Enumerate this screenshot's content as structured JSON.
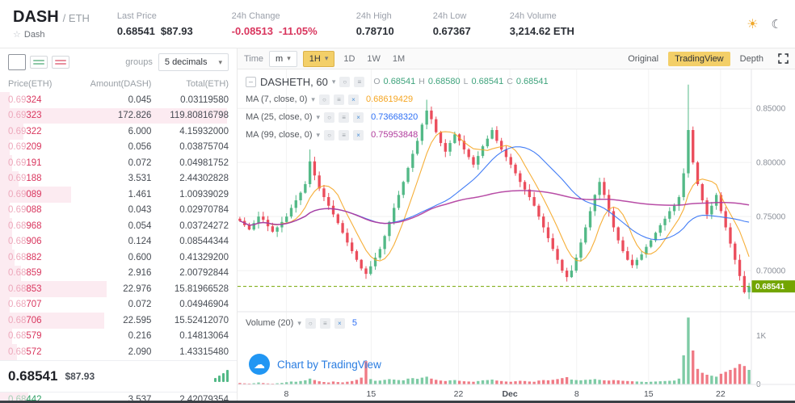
{
  "colors": {
    "accent_yellow": "#f3cf68",
    "sell_red": "#d9365e",
    "sell_red_light": "#eda8bb",
    "depth_pink": "#fcebf1",
    "buy_green": "#2f9e64",
    "buy_green_light": "#a5cfb6",
    "candle_up": "#53b987",
    "candle_down": "#eb4d5c",
    "badge_green": "#73a500",
    "ohlc_green": "#3fa37c",
    "link_blue": "#2a7de1"
  },
  "icons": {
    "sun": "☀",
    "moon": "☾",
    "star": "☆",
    "caret": "▾",
    "minus": "–",
    "eye": "○",
    "settings": "≡",
    "close": "×",
    "cloud": "☁"
  },
  "header": {
    "pair_base": "DASH",
    "pair_quote": "/ ETH",
    "pair_name": "Dash",
    "stats": [
      {
        "label": "Last Price",
        "value": "0.68541",
        "sub": "$87.93"
      },
      {
        "label": "24h Change",
        "value": "-0.08513",
        "sub": "-11.05%"
      },
      {
        "label": "24h High",
        "value": "0.78710",
        "sub": ""
      },
      {
        "label": "24h Low",
        "value": "0.67367",
        "sub": ""
      },
      {
        "label": "24h Volume",
        "value": "3,214.62 ETH",
        "sub": ""
      }
    ]
  },
  "orderbook": {
    "groups_label": "groups",
    "decimals_value": "5 decimals",
    "columns": [
      "Price(ETH)",
      "Amount(DASH)",
      "Total(ETH)"
    ],
    "asks": [
      {
        "p1": "0.69",
        "p2": "324",
        "amount": "0.045",
        "total": "0.03119580",
        "depth": 0.04
      },
      {
        "p1": "0.69",
        "p2": "323",
        "amount": "172.826",
        "total": "119.80816798",
        "depth": 0.96
      },
      {
        "p1": "0.69",
        "p2": "322",
        "amount": "6.000",
        "total": "4.15932000",
        "depth": 0.1
      },
      {
        "p1": "0.69",
        "p2": "209",
        "amount": "0.056",
        "total": "0.03875704",
        "depth": 0.04
      },
      {
        "p1": "0.69",
        "p2": "191",
        "amount": "0.072",
        "total": "0.04981752",
        "depth": 0.05
      },
      {
        "p1": "0.69",
        "p2": "188",
        "amount": "3.531",
        "total": "2.44302828",
        "depth": 0.08
      },
      {
        "p1": "0.69",
        "p2": "089",
        "amount": "1.461",
        "total": "1.00939029",
        "depth": 0.3
      },
      {
        "p1": "0.69",
        "p2": "088",
        "amount": "0.043",
        "total": "0.02970784",
        "depth": 0.04
      },
      {
        "p1": "0.68",
        "p2": "968",
        "amount": "0.054",
        "total": "0.03724272",
        "depth": 0.05
      },
      {
        "p1": "0.68",
        "p2": "906",
        "amount": "0.124",
        "total": "0.08544344",
        "depth": 0.05
      },
      {
        "p1": "0.68",
        "p2": "882",
        "amount": "0.600",
        "total": "0.41329200",
        "depth": 0.06
      },
      {
        "p1": "0.68",
        "p2": "859",
        "amount": "2.916",
        "total": "2.00792844",
        "depth": 0.09
      },
      {
        "p1": "0.68",
        "p2": "853",
        "amount": "22.976",
        "total": "15.81966528",
        "depth": 0.45
      },
      {
        "p1": "0.68",
        "p2": "707",
        "amount": "0.072",
        "total": "0.04946904",
        "depth": 0.04
      },
      {
        "p1": "0.68",
        "p2": "706",
        "amount": "22.595",
        "total": "15.52412070",
        "depth": 0.44
      },
      {
        "p1": "0.68",
        "p2": "579",
        "amount": "0.216",
        "total": "0.14813064",
        "depth": 0.05
      },
      {
        "p1": "0.68",
        "p2": "572",
        "amount": "2.090",
        "total": "1.43315480",
        "depth": 0.07
      }
    ],
    "last": {
      "price": "0.68541",
      "usd": "$87.93"
    },
    "bids": [
      {
        "p1": "0.68",
        "p2": "442",
        "amount": "3.537",
        "total": "2.42079354",
        "depth": 0.12
      }
    ]
  },
  "chart": {
    "toolbar": {
      "time_label": "Time",
      "minute_value": "m",
      "hour_value": "1H",
      "intervals": [
        "1D",
        "1W",
        "1M"
      ],
      "view_buttons": [
        "Original",
        "TradingView",
        "Depth"
      ]
    },
    "legend": {
      "symbol": "DASHETH, 60",
      "o_label": "O",
      "o_value": "0.68541",
      "h_label": "H",
      "h_value": "0.68580",
      "l_label": "L",
      "l_value": "0.68541",
      "c_label": "C",
      "c_value": "0.68541"
    },
    "mas": [
      {
        "label": "MA (7, close, 0)",
        "value": "0.68619429",
        "color": "#f5a623"
      },
      {
        "label": "MA (25, close, 0)",
        "value": "0.73668320",
        "color": "#2d6ff5"
      },
      {
        "label": "MA (99, close, 0)",
        "value": "0.75953848",
        "color": "#b03a9c"
      }
    ],
    "volume": {
      "label": "Volume (20)",
      "value": "5",
      "color": "#2d6ff5"
    },
    "watermark": "Chart by TradingView"
  },
  "chart_data": {
    "type": "candlestick",
    "title": "DASHETH, 60",
    "ylim": [
      0.662,
      0.886
    ],
    "yticks": [
      {
        "value": 0.85,
        "label": "0.85000"
      },
      {
        "value": 0.8,
        "label": "0.80000"
      },
      {
        "value": 0.75,
        "label": "0.75000"
      },
      {
        "value": 0.7,
        "label": "0.70000"
      }
    ],
    "last_price": 0.68541,
    "last_price_label": "0.68541",
    "x_ticks": [
      {
        "pos": 0.095,
        "label": "8",
        "bold": false
      },
      {
        "pos": 0.26,
        "label": "15",
        "bold": false
      },
      {
        "pos": 0.43,
        "label": "22",
        "bold": false
      },
      {
        "pos": 0.53,
        "label": "Dec",
        "bold": true
      },
      {
        "pos": 0.66,
        "label": "8",
        "bold": false
      },
      {
        "pos": 0.8,
        "label": "15",
        "bold": false
      },
      {
        "pos": 0.94,
        "label": "22",
        "bold": false
      }
    ],
    "closes": [
      0.746,
      0.742,
      0.738,
      0.744,
      0.75,
      0.747,
      0.741,
      0.736,
      0.74,
      0.745,
      0.75,
      0.758,
      0.765,
      0.772,
      0.78,
      0.801,
      0.788,
      0.776,
      0.768,
      0.76,
      0.752,
      0.744,
      0.735,
      0.726,
      0.718,
      0.71,
      0.702,
      0.697,
      0.704,
      0.712,
      0.72,
      0.732,
      0.745,
      0.758,
      0.77,
      0.782,
      0.795,
      0.808,
      0.82,
      0.835,
      0.848,
      0.84,
      0.828,
      0.818,
      0.81,
      0.818,
      0.826,
      0.82,
      0.812,
      0.805,
      0.798,
      0.806,
      0.815,
      0.822,
      0.83,
      0.82,
      0.812,
      0.805,
      0.798,
      0.79,
      0.782,
      0.775,
      0.768,
      0.76,
      0.75,
      0.74,
      0.73,
      0.72,
      0.71,
      0.7,
      0.694,
      0.7,
      0.712,
      0.726,
      0.74,
      0.755,
      0.77,
      0.782,
      0.77,
      0.755,
      0.74,
      0.728,
      0.718,
      0.71,
      0.705,
      0.71,
      0.715,
      0.722,
      0.728,
      0.735,
      0.742,
      0.748,
      0.755,
      0.76,
      0.768,
      0.79,
      0.83,
      0.8,
      0.78,
      0.765,
      0.752,
      0.76,
      0.77,
      0.755,
      0.74,
      0.725,
      0.71,
      0.695,
      0.68,
      0.68541
    ],
    "volumes": [
      30,
      22,
      18,
      25,
      40,
      28,
      20,
      16,
      24,
      32,
      45,
      60,
      55,
      70,
      85,
      120,
      90,
      65,
      50,
      40,
      60,
      48,
      42,
      55,
      70,
      95,
      140,
      480,
      110,
      75,
      80,
      95,
      110,
      100,
      90,
      85,
      120,
      130,
      115,
      140,
      160,
      120,
      95,
      80,
      70,
      85,
      90,
      75,
      65,
      60,
      55,
      70,
      85,
      90,
      100,
      80,
      70,
      60,
      55,
      65,
      75,
      70,
      60,
      55,
      80,
      90,
      85,
      95,
      110,
      130,
      150,
      100,
      90,
      85,
      95,
      100,
      110,
      95,
      85,
      80,
      90,
      85,
      75,
      70,
      65,
      60,
      55,
      50,
      55,
      60,
      65,
      70,
      75,
      80,
      120,
      600,
      1380,
      700,
      320,
      240,
      200,
      180,
      160,
      220,
      260,
      300,
      340,
      420,
      380,
      300
    ],
    "wick_overrides": {
      "15": {
        "high": 0.812
      },
      "40": {
        "high": 0.858
      },
      "96": {
        "high": 0.872
      },
      "109": {
        "low": 0.6737
      }
    },
    "volume_axis": {
      "max": 1400,
      "ticks": [
        {
          "value": 1000,
          "label": "1K"
        },
        {
          "value": 0,
          "label": "0"
        }
      ]
    },
    "ma_windows": [
      7,
      25,
      99
    ],
    "seed": 42
  }
}
